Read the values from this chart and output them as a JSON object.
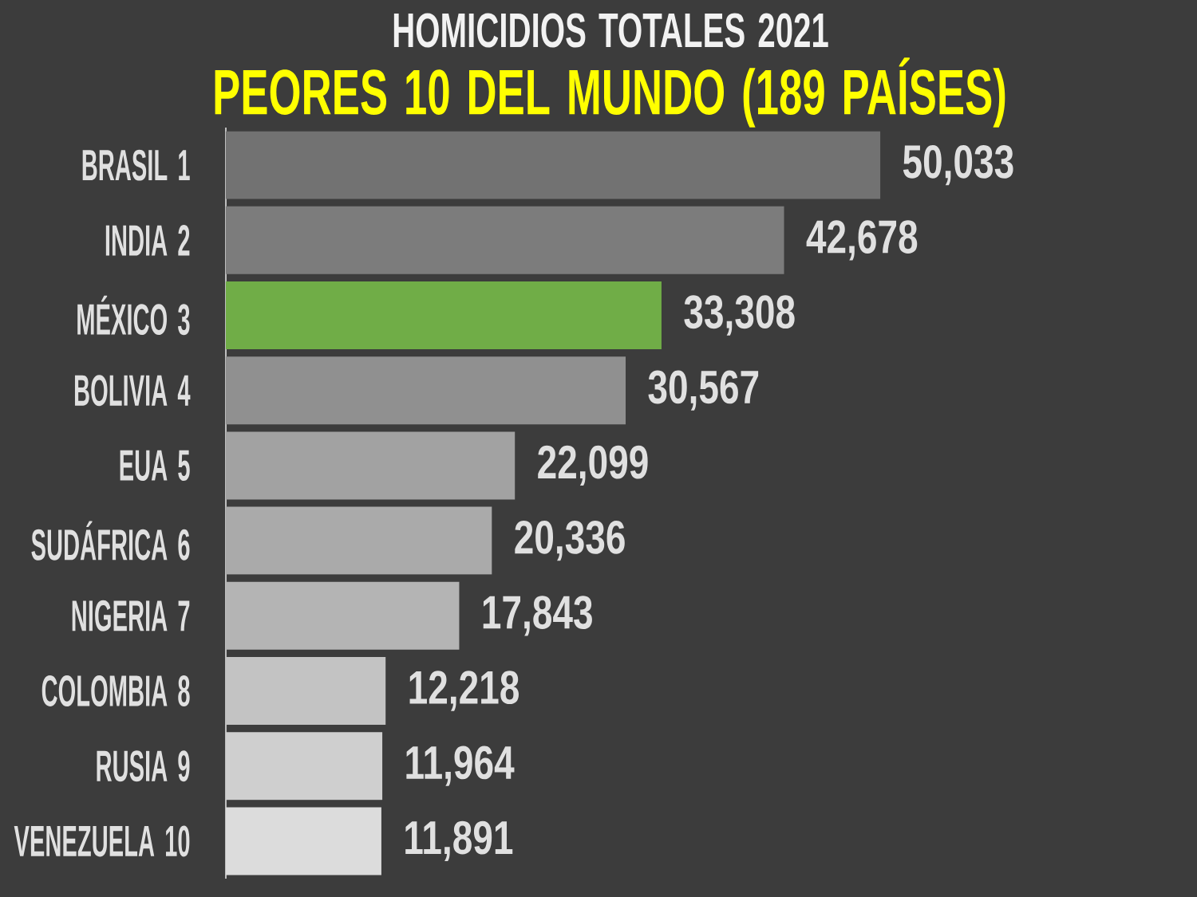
{
  "chart_data": {
    "type": "bar",
    "orientation": "horizontal",
    "title": "HOMICIDIOS TOTALES 2021",
    "subtitle": "PEORES 10 DEL MUNDO (189 PAÍSES)",
    "categories": [
      "BRASIL 1",
      "INDIA 2",
      "MÉXICO 3",
      "BOLIVIA 4",
      "EUA 5",
      "SUDÁFRICA 6",
      "NIGERIA 7",
      "COLOMBIA 8",
      "RUSIA 9",
      "VENEZUELA 10"
    ],
    "values": [
      50033,
      42678,
      33308,
      30567,
      22099,
      20336,
      17843,
      12218,
      11964,
      11891
    ],
    "value_labels": [
      "50,033",
      "42,678",
      "33,308",
      "30,567",
      "22,099",
      "20,336",
      "17,843",
      "12,218",
      "11,964",
      "11,891"
    ],
    "colors": [
      "#727272",
      "#7c7c7c",
      "#70ad47",
      "#909090",
      "#a2a2a2",
      "#aaaaaa",
      "#b4b4b4",
      "#c3c3c3",
      "#cfcfcf",
      "#dcdcdc"
    ]
  }
}
